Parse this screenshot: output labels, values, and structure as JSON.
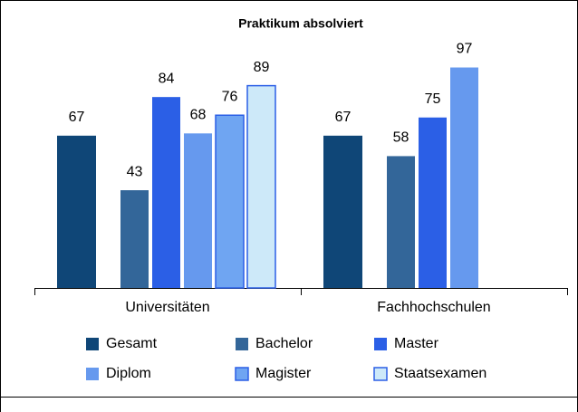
{
  "chart_data": {
    "type": "bar",
    "title": "Praktikum absolviert",
    "categories": [
      "Universitäten",
      "Fachhochschulen"
    ],
    "series": [
      {
        "name": "Gesamt",
        "color": "#0f4677",
        "values": [
          67,
          67
        ]
      },
      {
        "name": "Bachelor",
        "color": "#336699",
        "values": [
          43,
          58
        ]
      },
      {
        "name": "Master",
        "color": "#2b5fe6",
        "values": [
          84,
          75
        ]
      },
      {
        "name": "Diplom",
        "color": "#6699ee",
        "values": [
          68,
          97
        ]
      },
      {
        "name": "Magister",
        "color": "#6fa5f2",
        "values": [
          76,
          null
        ]
      },
      {
        "name": "Staatsexamen",
        "color": "#cde9f9",
        "values": [
          89,
          null
        ]
      }
    ],
    "ylim": [
      0,
      100
    ]
  }
}
